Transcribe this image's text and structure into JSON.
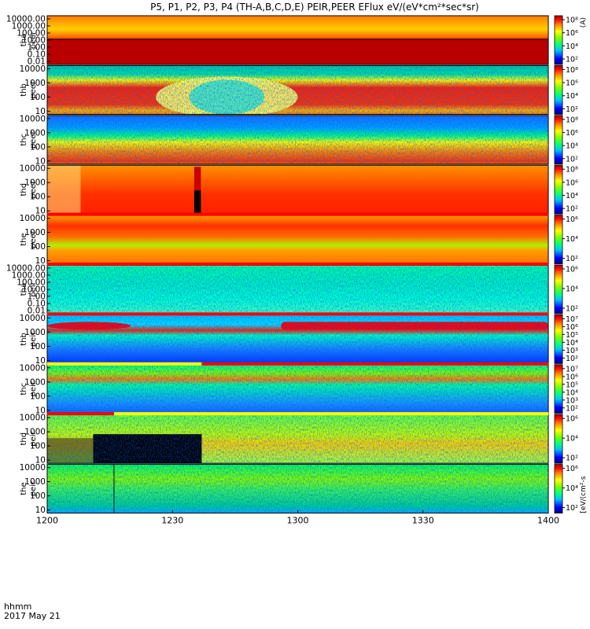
{
  "chart_data": {
    "type": "heatmap",
    "title": "P5, P1, P2, P3, P4 (TH-A,B,C,D,E) PEIR,PEER EFlux eV/(eV*cm²*sec*sr)",
    "xlabel": "hhmm",
    "date": "2017 May 21",
    "x_ticks": [
      "1200",
      "1230",
      "1300",
      "1330",
      "1400"
    ],
    "x_range": [
      0,
      120
    ],
    "colors": {
      "red": "#ff0000",
      "dark_red": "#c80000",
      "orange": "#ff7700",
      "yellow": "#ffff00",
      "green": "#00e000",
      "cyan": "#00ffff",
      "blue": "#0044ff",
      "navy": "#000080",
      "black": "#000000"
    },
    "panels": [
      {
        "probe": "tha",
        "species": "peer",
        "yticks": [
          "10000.00",
          "1000.00",
          "100.00",
          "10.00",
          "1.00",
          "0.10",
          "0.01"
        ],
        "cbar_ticks": [
          "10⁸",
          "10⁶",
          "10⁴",
          "10²"
        ],
        "cbar_label": "(A)",
        "bar": [],
        "dark_patch": null
      },
      {
        "probe": "thb",
        "species": "peer",
        "yticks": [
          "10000",
          "1000",
          "100",
          "10"
        ],
        "cbar_ticks": [
          "10⁸",
          "10⁶",
          "10⁴",
          "10²"
        ],
        "cbar_label": "",
        "bar": [],
        "dark_patch": null
      },
      {
        "probe": "thc",
        "species": "peer",
        "yticks": [
          "10000",
          "1000",
          "100",
          "10"
        ],
        "cbar_ticks": [
          "10⁸",
          "10⁶",
          "10⁴",
          "10²"
        ],
        "cbar_label": "",
        "bar": [],
        "dark_patch": null
      },
      {
        "probe": "thd",
        "species": "peer",
        "yticks": [
          "10000",
          "1000",
          "100",
          "10"
        ],
        "cbar_ticks": [
          "10⁸",
          "10⁶",
          "10⁴",
          "10²"
        ],
        "cbar_label": "",
        "bar": [],
        "dark_patch": null
      },
      {
        "probe": "the",
        "species": "peer",
        "yticks": [
          "10000",
          "1000",
          "100",
          "10"
        ],
        "cbar_ticks": [
          "10⁶",
          "10⁴",
          "10²"
        ],
        "cbar_label": "",
        "bar": [
          {
            "from": 0,
            "to": 120,
            "color": "#ff0000"
          }
        ],
        "dark_patch": null
      },
      {
        "probe": "tha",
        "species": "peir",
        "yticks": [
          "10000.00",
          "1000.00",
          "100.00",
          "10.00",
          "1.00",
          "0.10",
          "0.01"
        ],
        "cbar_ticks": [
          "10⁶",
          "10⁴",
          "10²"
        ],
        "cbar_label": "",
        "bar": [
          {
            "from": 0,
            "to": 120,
            "color": "#ff0000"
          }
        ],
        "dark_patch": null
      },
      {
        "probe": "thb",
        "species": "peir",
        "yticks": [
          "10000",
          "1000",
          "100",
          "10"
        ],
        "cbar_ticks": [
          "10⁷",
          "10⁶",
          "10⁵",
          "10⁴",
          "10³",
          "10²"
        ],
        "cbar_label": "",
        "bar": [
          {
            "from": 0,
            "to": 120,
            "color": "#ff0000"
          }
        ],
        "dark_patch": null
      },
      {
        "probe": "thc",
        "species": "peir",
        "yticks": [
          "10000",
          "1000",
          "100",
          "10"
        ],
        "cbar_ticks": [
          "10⁷",
          "10⁶",
          "10⁵",
          "10⁴",
          "10³",
          "10²"
        ],
        "cbar_label": "",
        "bar": [
          {
            "from": 0,
            "to": 37,
            "color": "#ffff00"
          },
          {
            "from": 37,
            "to": 120,
            "color": "#ff0000"
          }
        ],
        "dark_patch": null
      },
      {
        "probe": "thd",
        "species": "peir",
        "yticks": [
          "10000",
          "1000",
          "100",
          "10"
        ],
        "cbar_ticks": [
          "10⁶",
          "10⁴",
          "10²"
        ],
        "cbar_label": "",
        "bar": [
          {
            "from": 0,
            "to": 16,
            "color": "#ff0000"
          },
          {
            "from": 16,
            "to": 120,
            "color": "#ffff00"
          }
        ],
        "dark_patch": null
      },
      {
        "probe": "the",
        "species": "peir",
        "yticks": [
          "10000",
          "1000",
          "100",
          "10"
        ],
        "cbar_ticks": [
          "10⁶",
          "10⁴",
          "10²"
        ],
        "cbar_label": "[eV/(cm²-s",
        "bar": [],
        "dark_patch": null
      }
    ]
  }
}
